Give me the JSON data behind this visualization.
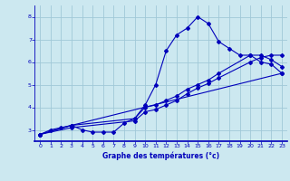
{
  "xlabel": "Graphe des températures (°c)",
  "bg_color": "#cce8f0",
  "grid_color": "#a0c8d8",
  "line_color": "#0000bb",
  "xlim": [
    -0.5,
    23.5
  ],
  "ylim": [
    2.5,
    8.5
  ],
  "yticks": [
    3,
    4,
    5,
    6,
    7,
    8
  ],
  "xticks": [
    0,
    1,
    2,
    3,
    4,
    5,
    6,
    7,
    8,
    9,
    10,
    11,
    12,
    13,
    14,
    15,
    16,
    17,
    18,
    19,
    20,
    21,
    22,
    23
  ],
  "line1_x": [
    0,
    1,
    2,
    3,
    4,
    5,
    6,
    7,
    8,
    9,
    10,
    11,
    12,
    13,
    14,
    15,
    16,
    17,
    18,
    19,
    20,
    21,
    22,
    23
  ],
  "line1_y": [
    2.8,
    3.0,
    3.1,
    3.2,
    3.0,
    2.9,
    2.9,
    2.9,
    3.3,
    3.5,
    4.1,
    5.0,
    6.5,
    7.2,
    7.5,
    8.0,
    7.7,
    6.9,
    6.6,
    6.3,
    6.3,
    6.0,
    5.9,
    5.5
  ],
  "line2_x": [
    0,
    3,
    23
  ],
  "line2_y": [
    2.8,
    3.2,
    5.5
  ],
  "line3_x": [
    0,
    3,
    9,
    10,
    11,
    12,
    13,
    14,
    15,
    16,
    17,
    20,
    21,
    22,
    23
  ],
  "line3_y": [
    2.8,
    3.2,
    3.5,
    4.0,
    4.1,
    4.3,
    4.5,
    4.8,
    5.0,
    5.2,
    5.5,
    6.3,
    6.3,
    6.1,
    5.8
  ],
  "line4_x": [
    0,
    3,
    9,
    10,
    11,
    12,
    13,
    14,
    15,
    16,
    17,
    20,
    21,
    22,
    23
  ],
  "line4_y": [
    2.8,
    3.1,
    3.4,
    3.8,
    3.9,
    4.1,
    4.3,
    4.6,
    4.85,
    5.05,
    5.3,
    6.0,
    6.2,
    6.3,
    6.3
  ]
}
